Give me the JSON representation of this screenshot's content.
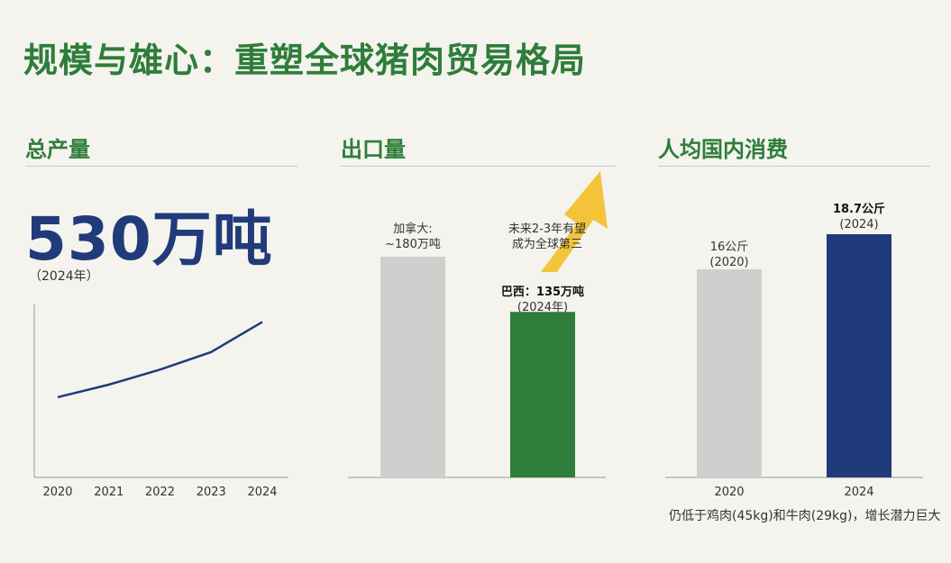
{
  "title": "规模与雄心：重塑全球猪肉贸易格局",
  "panels": {
    "production": {
      "heading": "总产量",
      "big_value": "530万吨",
      "big_value_year": "（2024年）"
    },
    "exports": {
      "heading": "出口量",
      "arrow_note_line1": "未来2-3年有望",
      "arrow_note_line2": "成为全球第三"
    },
    "consumption": {
      "heading": "人均国内消费",
      "footnote": "仍低于鸡肉(45kg)和牛肉(29kg)，增长潜力巨大"
    }
  },
  "colors": {
    "green": "#2e7d3a",
    "navy": "#1f3b7a",
    "grey_bar": "#cfcfcd",
    "arrow": "#f2c12e"
  },
  "chart_data": [
    {
      "type": "line",
      "name": "production-trend",
      "x": [
        "2020",
        "2021",
        "2022",
        "2023",
        "2024"
      ],
      "y_relative": [
        0.32,
        0.37,
        0.43,
        0.5,
        0.62
      ],
      "note": "trend only, no y axis values printed"
    },
    {
      "type": "bar",
      "name": "exports",
      "categories": [
        "加拿大",
        "巴西"
      ],
      "values": [
        180,
        135
      ],
      "unit": "万吨",
      "labels": [
        [
          "加拿大:",
          "~180万吨"
        ],
        [
          "巴西：135万吨",
          "(2024年)"
        ]
      ]
    },
    {
      "type": "bar",
      "name": "per-capita-consumption",
      "categories": [
        "2020",
        "2024"
      ],
      "values": [
        16,
        18.7
      ],
      "unit": "公斤",
      "labels": [
        [
          "16公斤",
          "(2020)"
        ],
        [
          "18.7公斤",
          "(2024)"
        ]
      ]
    }
  ]
}
